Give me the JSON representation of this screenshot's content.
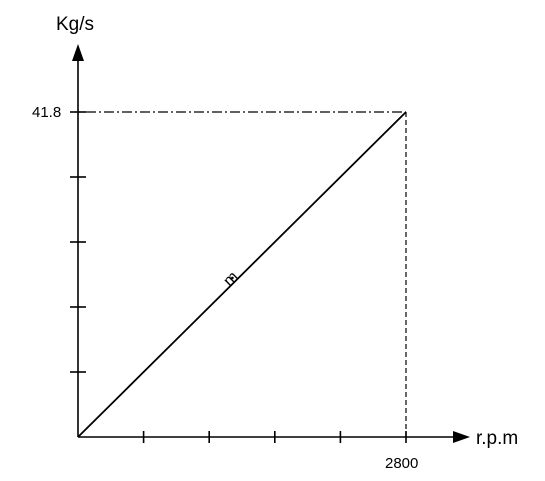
{
  "chart_data": {
    "type": "line",
    "x_unit_label": "r.p.m",
    "y_unit_label": "Kg/s",
    "xlim": [
      0,
      2800
    ],
    "ylim": [
      0,
      41.8
    ],
    "x_tick_count": 5,
    "y_tick_count": 5,
    "x_labeled_tick": "2800",
    "y_labeled_tick": "41.8",
    "series": [
      {
        "x": [
          0,
          2800
        ],
        "y": [
          0,
          41.8
        ],
        "annotation": "m"
      }
    ],
    "grid": false,
    "legend": "none",
    "colors": {
      "ink": "#000000",
      "background": "#ffffff"
    }
  }
}
